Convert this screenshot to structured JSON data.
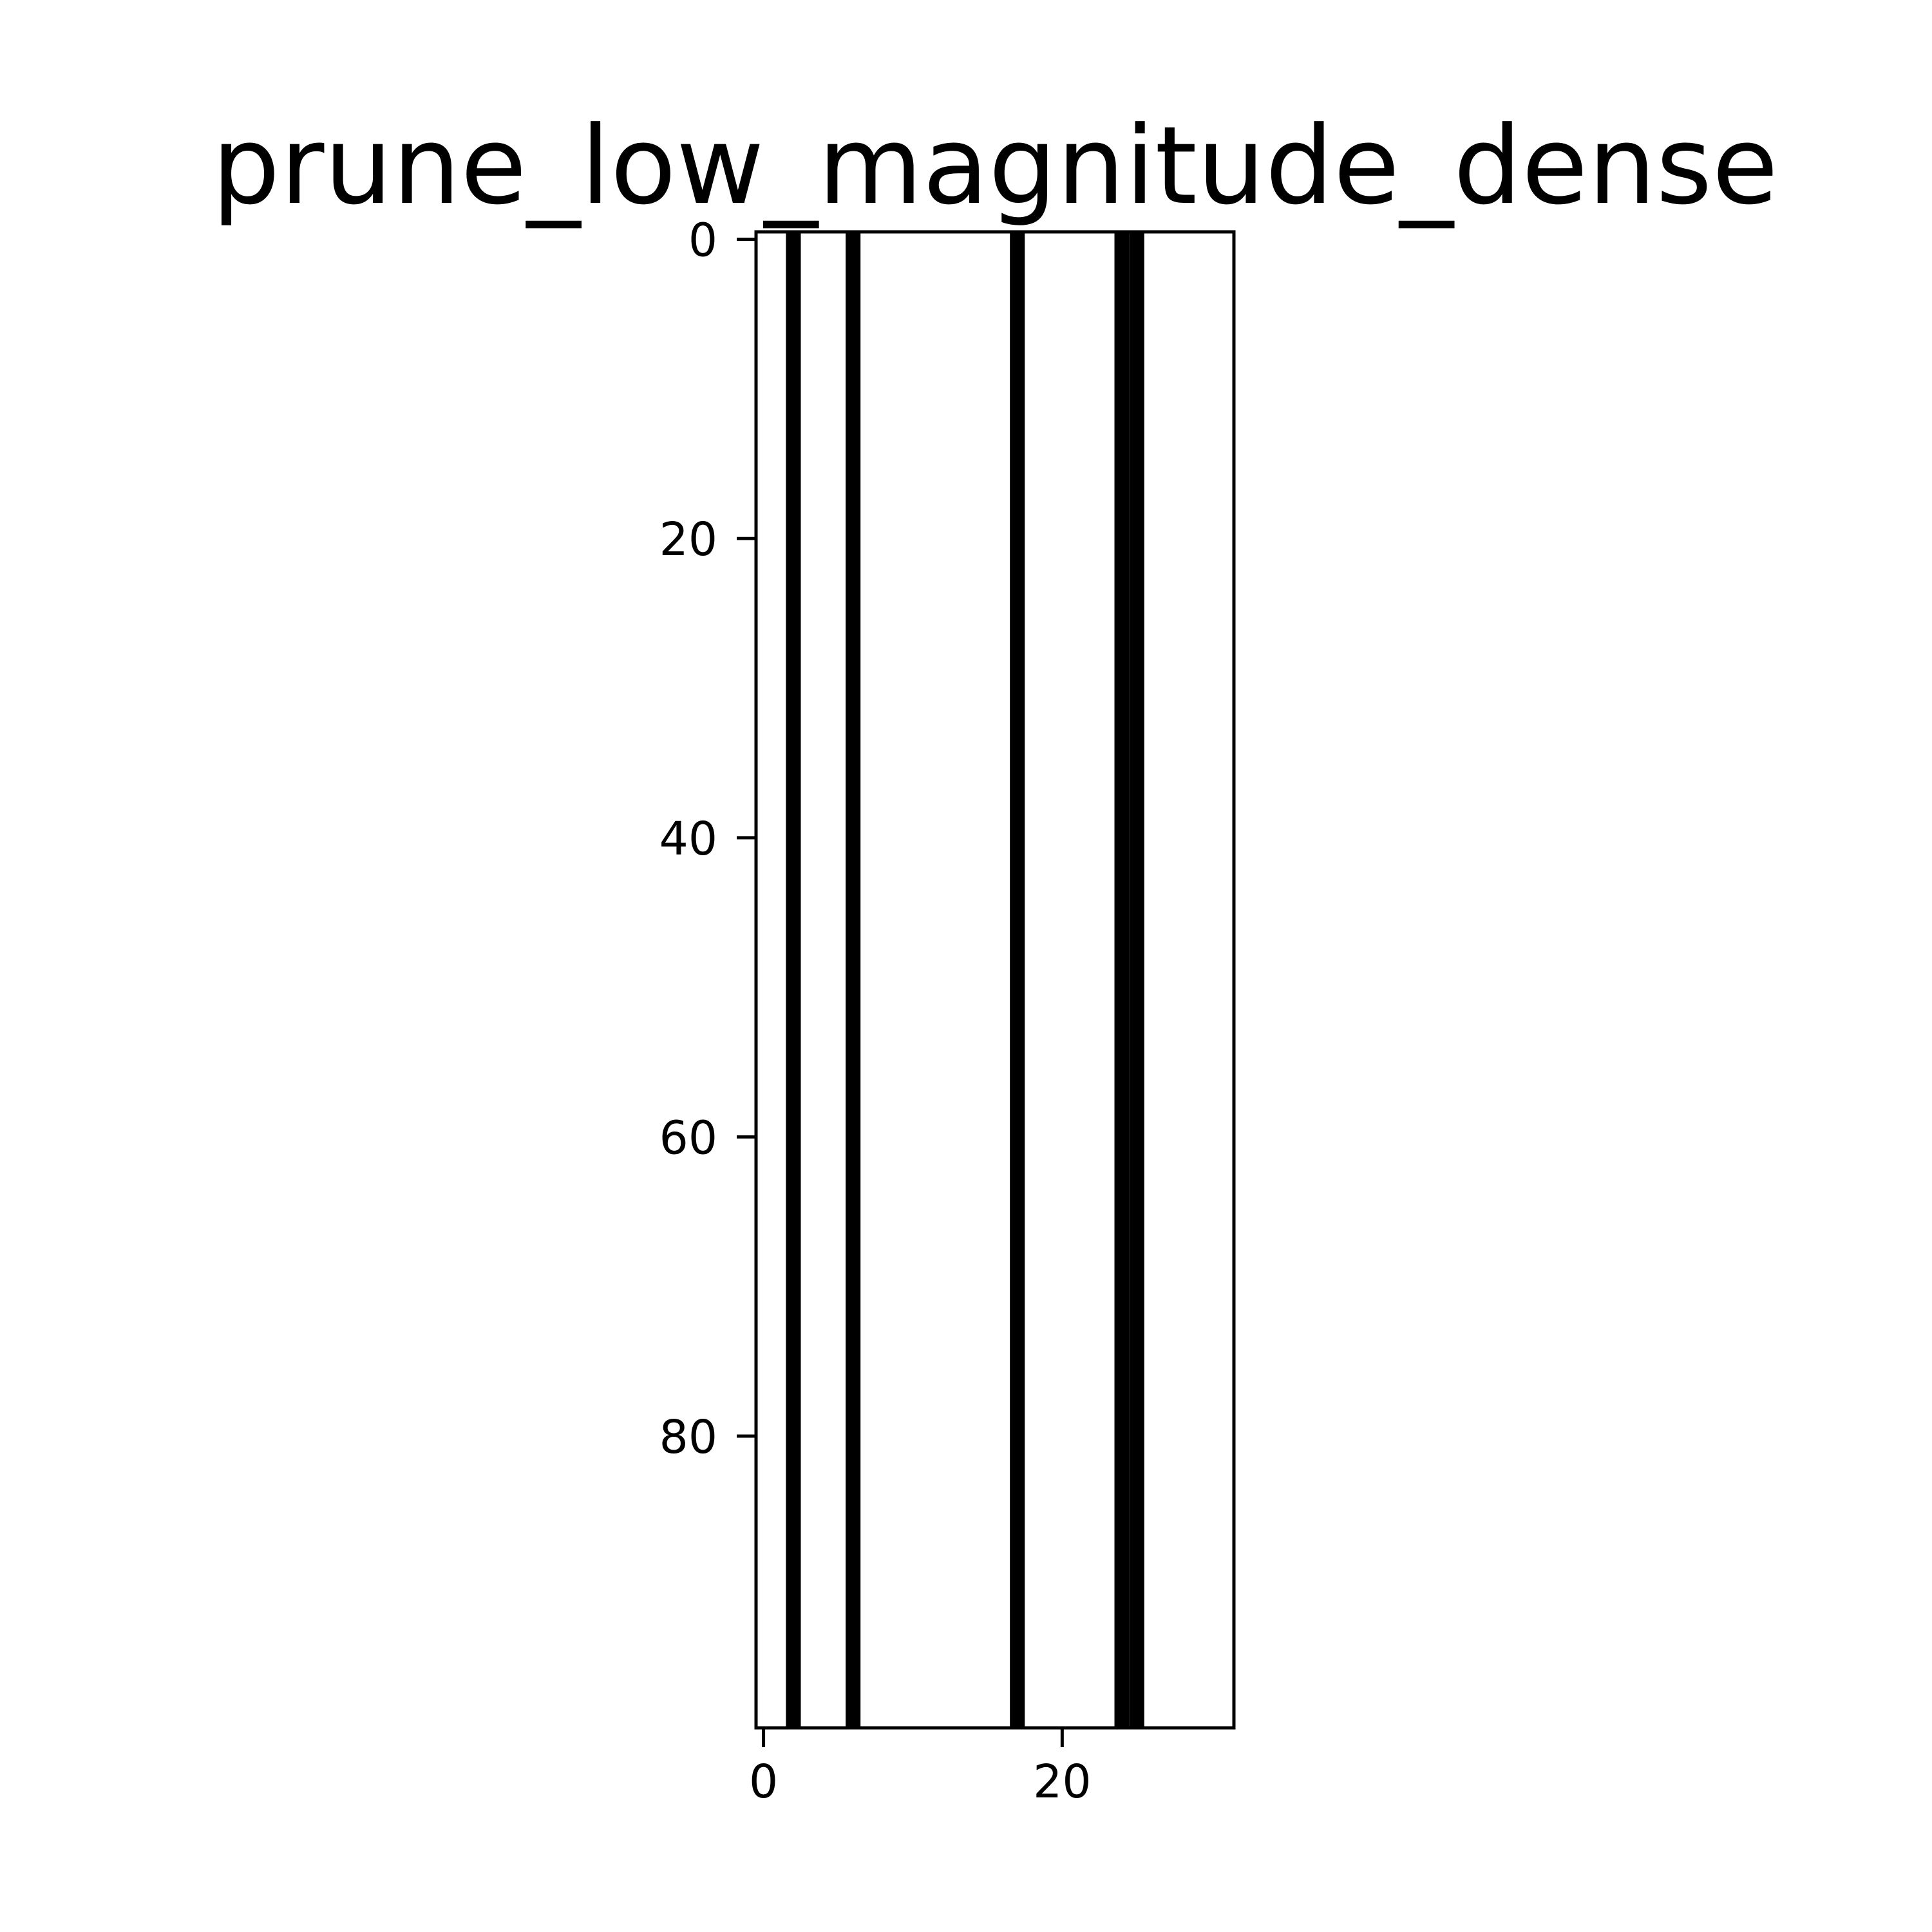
{
  "chart_data": {
    "type": "heatmap",
    "title": "prune_low_magnitude_dense",
    "xlabel": "",
    "ylabel": "",
    "n_cols": 32,
    "n_rows": 100,
    "x_range": [
      -0.5,
      31.5
    ],
    "y_range": [
      -0.5,
      99.5
    ],
    "y_inverted": true,
    "xticks": [
      0,
      20
    ],
    "yticks": [
      0,
      20,
      40,
      60,
      80
    ],
    "colormap": "gray",
    "pruned_columns": [
      2,
      6,
      17,
      24,
      25
    ],
    "cell_values_note": "",
    "grid": false,
    "colors": {
      "kept": "#ffffff",
      "pruned": "#000000",
      "axes": "#000000"
    }
  }
}
